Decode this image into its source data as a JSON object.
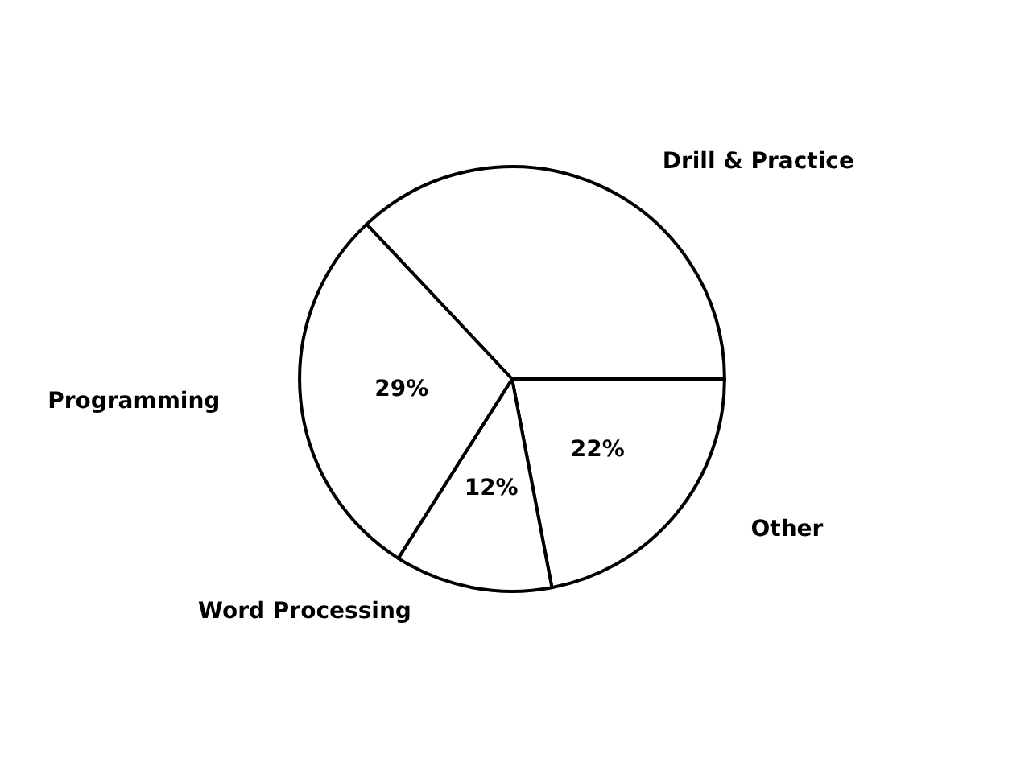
{
  "chart_data": {
    "type": "pie",
    "categories": [
      "Drill & Practice",
      "Other",
      "Word Processing",
      "Programming"
    ],
    "values": [
      37,
      22,
      12,
      29
    ],
    "value_labels": [
      null,
      "22%",
      "12%",
      "29%"
    ],
    "colors": [
      "#ffffff",
      "#ffffff",
      "#ffffff",
      "#ffffff"
    ],
    "legend": false
  }
}
